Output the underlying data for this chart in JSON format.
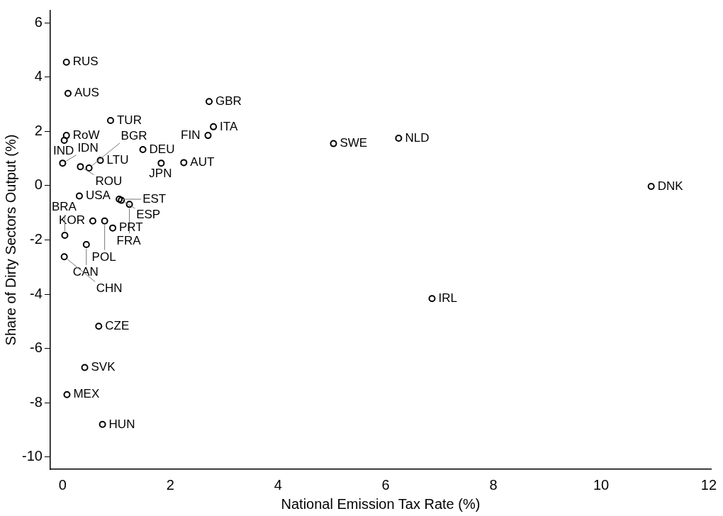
{
  "chart_data": {
    "type": "scatter",
    "xlabel": "National Emission Tax Rate (%)",
    "ylabel": "Share of Dirty Sectors Output (%)",
    "xlim": [
      -0.23,
      12.04
    ],
    "ylim": [
      -10.45,
      6.45
    ],
    "xticks": [
      0,
      2,
      4,
      6,
      8,
      10,
      12
    ],
    "yticks": [
      -10,
      -8,
      -6,
      -4,
      -2,
      0,
      2,
      4,
      6
    ],
    "grid": false,
    "legend": false,
    "marker": "circle",
    "series": [
      {
        "color": "#000000",
        "x": [
          0.07,
          0.1,
          2.72,
          0.89,
          2.8,
          2.7,
          0.07,
          0.03,
          5.03,
          6.24,
          1.49,
          0.0,
          0.7,
          1.83,
          2.25,
          0.33,
          0.49,
          0.31,
          1.05,
          1.09,
          1.24,
          0.56,
          0.78,
          0.93,
          0.04,
          0.44,
          0.03,
          6.86,
          0.67,
          0.41,
          0.08,
          0.74,
          10.93
        ],
        "values": [
          4.55,
          3.4,
          3.1,
          2.4,
          2.17,
          1.85,
          1.85,
          1.67,
          1.55,
          1.75,
          1.33,
          0.83,
          0.93,
          0.83,
          0.85,
          0.7,
          0.65,
          -0.38,
          -0.5,
          -0.54,
          -0.69,
          -1.3,
          -1.3,
          -1.56,
          -1.83,
          -2.17,
          -2.62,
          -4.16,
          -5.18,
          -6.7,
          -7.7,
          -8.8,
          -0.03
        ]
      }
    ],
    "annotations": [
      {
        "text": "RUS",
        "x": 0.07,
        "y": 4.55
      },
      {
        "text": "AUS",
        "x": 0.1,
        "y": 3.4
      },
      {
        "text": "GBR",
        "x": 2.72,
        "y": 3.1
      },
      {
        "text": "TUR",
        "x": 0.89,
        "y": 2.4
      },
      {
        "text": "ITA",
        "x": 2.8,
        "y": 2.17
      },
      {
        "text": "FIN",
        "x": 2.7,
        "y": 1.85
      },
      {
        "text": "RoW",
        "x": 0.07,
        "y": 1.85
      },
      {
        "text": "IND",
        "x": 0.03,
        "y": 1.67
      },
      {
        "text": "SWE",
        "x": 5.03,
        "y": 1.55
      },
      {
        "text": "NLD",
        "x": 6.24,
        "y": 1.75
      },
      {
        "text": "DEU",
        "x": 1.49,
        "y": 1.33
      },
      {
        "text": "IDN",
        "x": 0.0,
        "y": 0.83
      },
      {
        "text": "LTU",
        "x": 0.7,
        "y": 0.93
      },
      {
        "text": "JPN",
        "x": 1.83,
        "y": 0.83
      },
      {
        "text": "AUT",
        "x": 2.25,
        "y": 0.85
      },
      {
        "text": "ROU",
        "x": 0.33,
        "y": 0.7
      },
      {
        "text": "BGR",
        "x": 0.49,
        "y": 0.65
      },
      {
        "text": "USA",
        "x": 0.31,
        "y": -0.38
      },
      {
        "text": "EST",
        "x": 1.05,
        "y": -0.5
      },
      {
        "text": "ESP",
        "x": 1.09,
        "y": -0.54
      },
      {
        "text": "FRA",
        "x": 1.24,
        "y": -0.69
      },
      {
        "text": "KOR",
        "x": 0.56,
        "y": -1.3
      },
      {
        "text": "POL",
        "x": 0.78,
        "y": -1.3
      },
      {
        "text": "PRT",
        "x": 0.93,
        "y": -1.56
      },
      {
        "text": "BRA",
        "x": 0.04,
        "y": -1.83
      },
      {
        "text": "CAN",
        "x": 0.44,
        "y": -2.17
      },
      {
        "text": "CHN",
        "x": 0.03,
        "y": -2.62
      },
      {
        "text": "IRL",
        "x": 6.86,
        "y": -4.16
      },
      {
        "text": "CZE",
        "x": 0.67,
        "y": -5.18
      },
      {
        "text": "SVK",
        "x": 0.41,
        "y": -6.7
      },
      {
        "text": "MEX",
        "x": 0.08,
        "y": -7.7
      },
      {
        "text": "HUN",
        "x": 0.74,
        "y": -8.8
      },
      {
        "text": "DNK",
        "x": 10.93,
        "y": -0.03
      }
    ]
  }
}
